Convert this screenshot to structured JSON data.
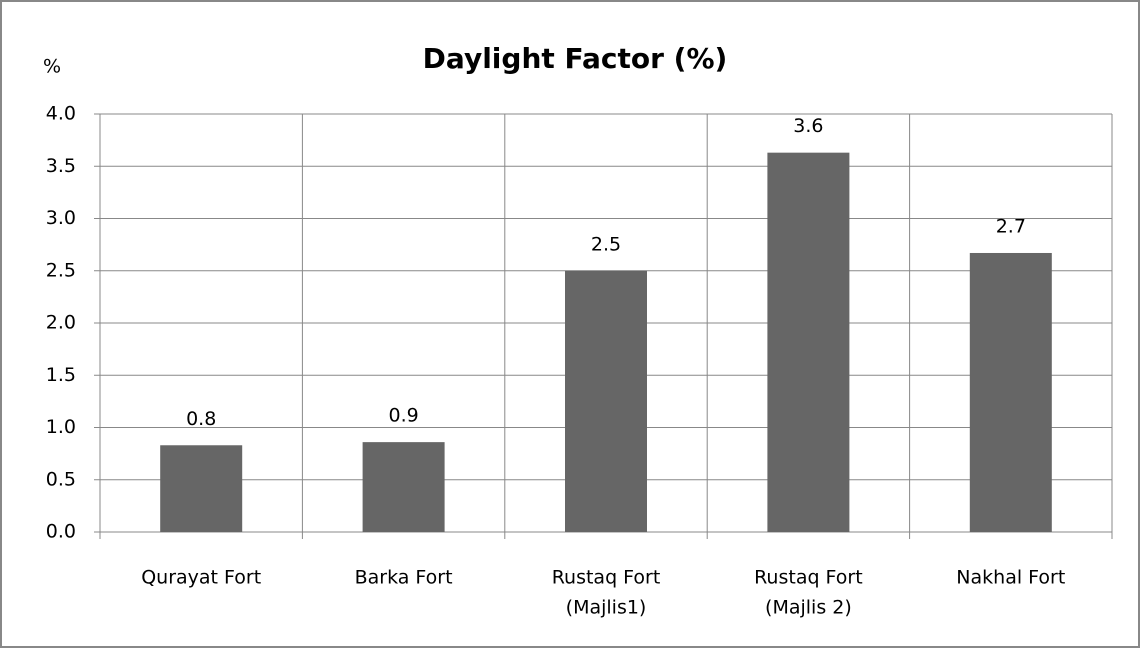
{
  "chart_data": {
    "type": "bar",
    "title": "Daylight Factor (%)",
    "y_label": "%",
    "categories": [
      [
        "Qurayat Fort"
      ],
      [
        "Barka Fort"
      ],
      [
        "Rustaq Fort",
        "(Majlis1)"
      ],
      [
        "Rustaq Fort",
        "(Majlis 2)"
      ],
      [
        "Nakhal Fort"
      ]
    ],
    "values": [
      0.83,
      0.86,
      2.5,
      3.63,
      2.67
    ],
    "value_labels": [
      "0.8",
      "0.9",
      "2.5",
      "3.6",
      "2.7"
    ],
    "color": "#666666",
    "ylim": [
      0,
      4
    ],
    "yticks": [
      {
        "value": 0,
        "label": "0.0"
      },
      {
        "value": 0.5,
        "label": "0.5"
      },
      {
        "value": 1,
        "label": "1.0"
      },
      {
        "value": 1.5,
        "label": "1.5"
      },
      {
        "value": 2,
        "label": "2.0"
      },
      {
        "value": 2.5,
        "label": "2.5"
      },
      {
        "value": 3,
        "label": "3.0"
      },
      {
        "value": 3.5,
        "label": "3.5"
      },
      {
        "value": 4,
        "label": "4.0"
      }
    ],
    "grid": true
  }
}
